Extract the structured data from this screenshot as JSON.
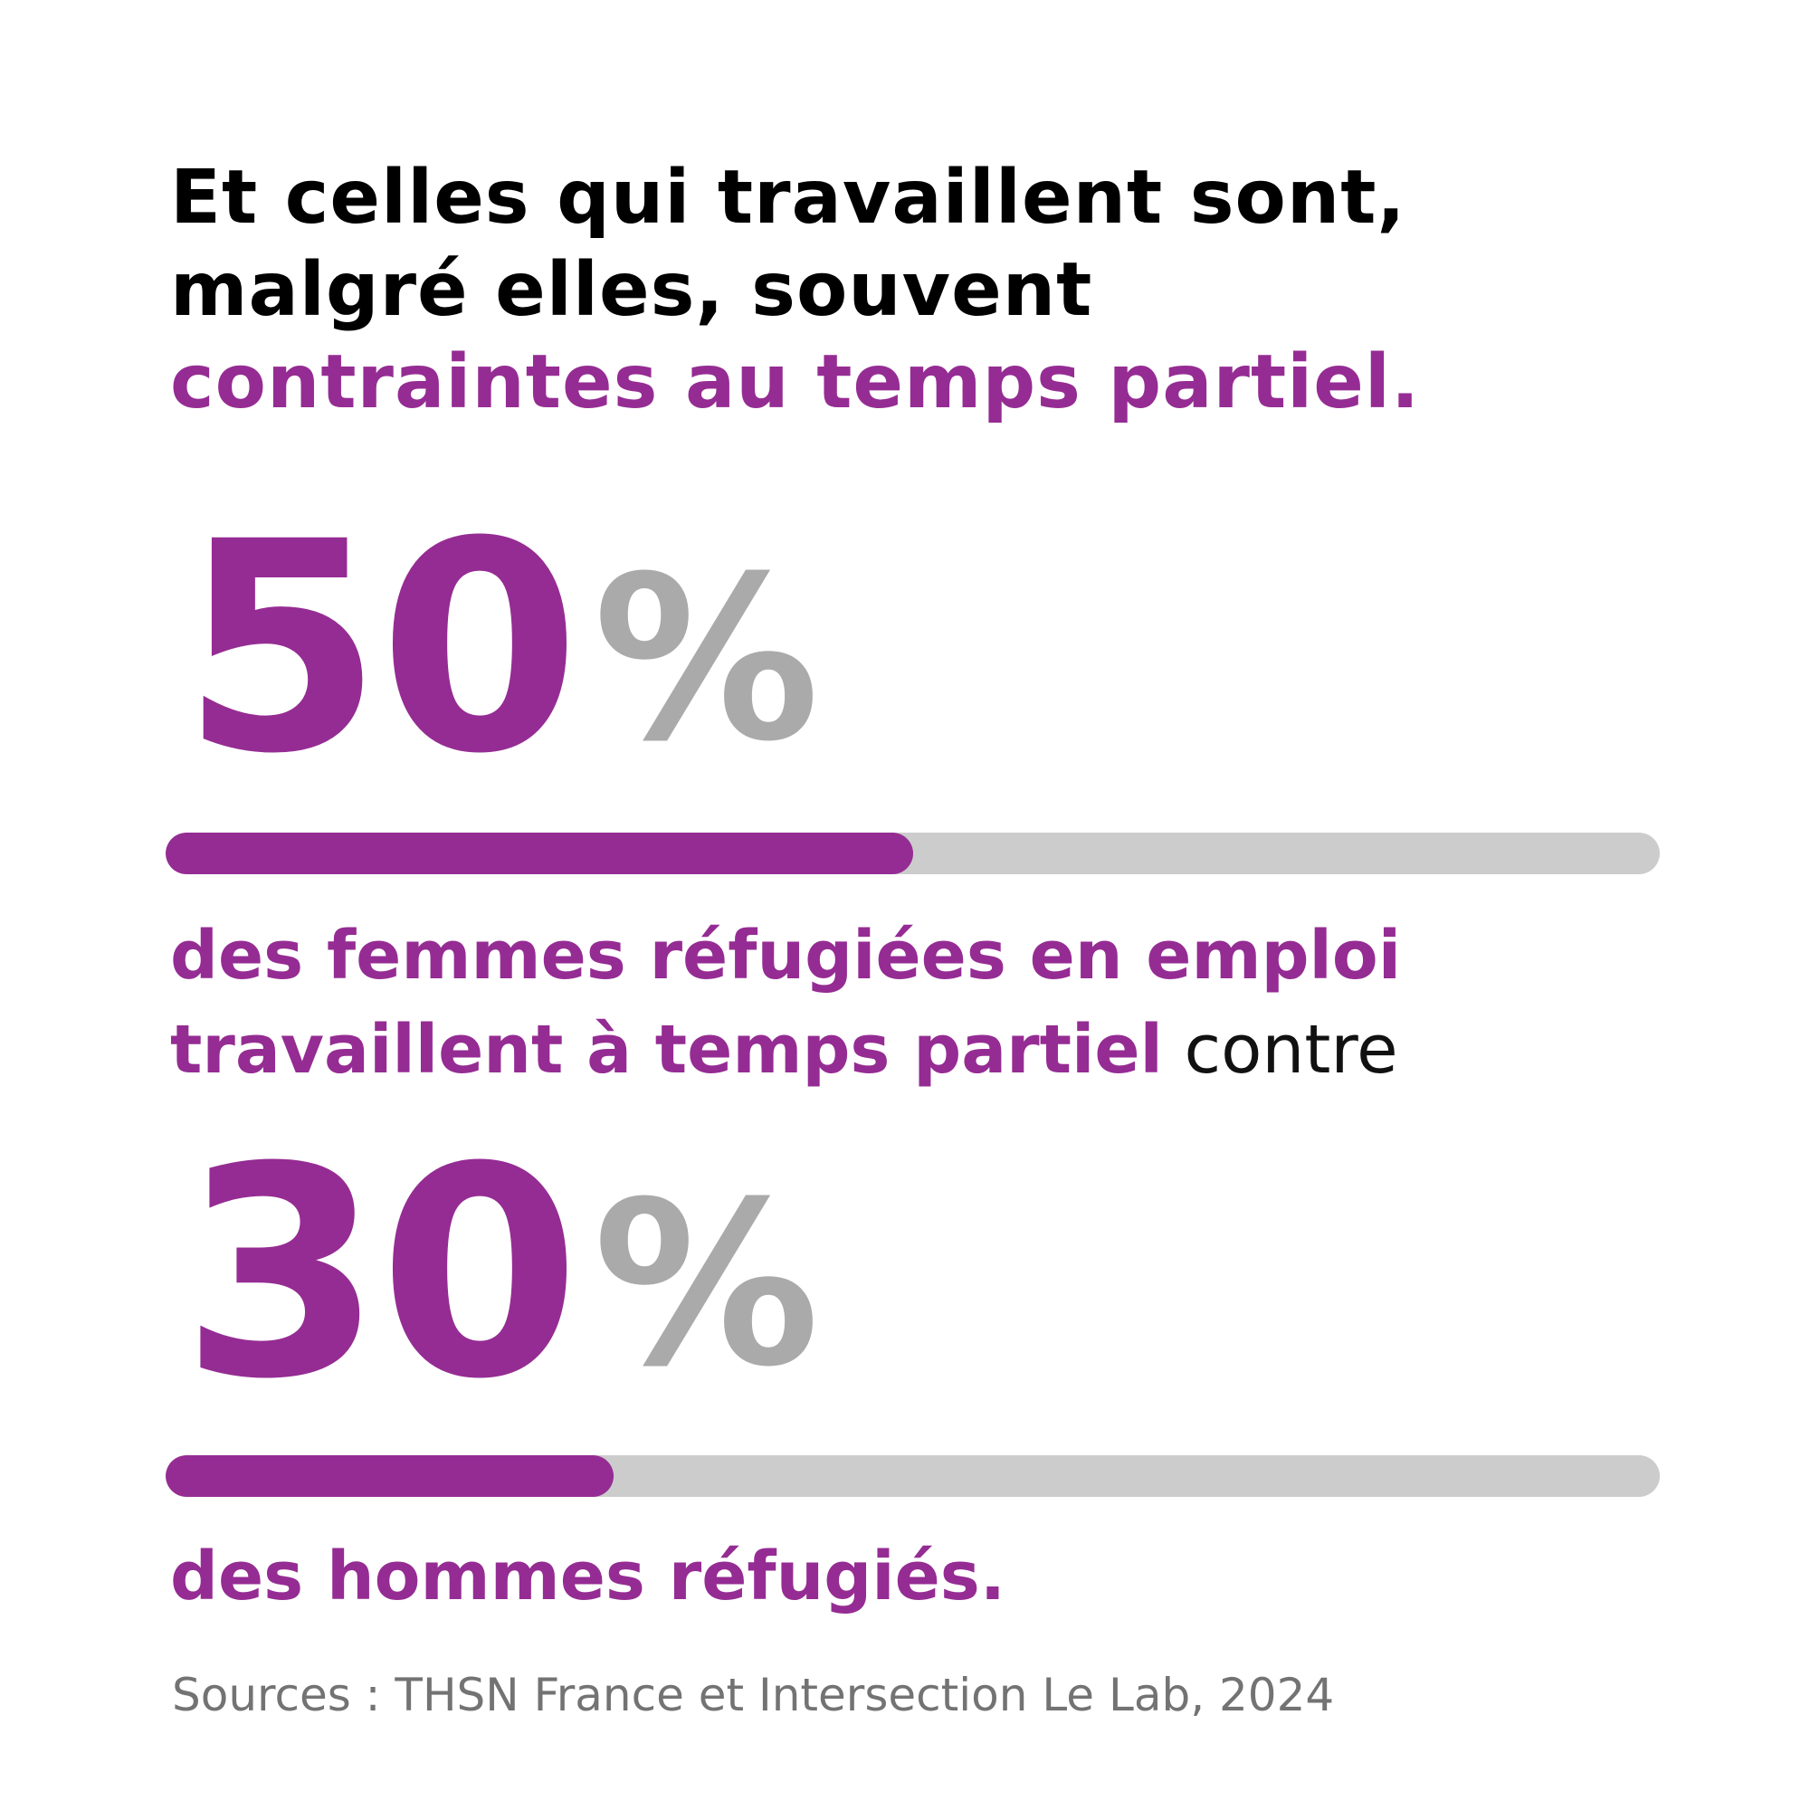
{
  "headline": {
    "line1": "Et celles qui travaillent sont,",
    "line2": "malgré elles, souvent",
    "line3": "contraintes au temps partiel."
  },
  "stat_women": {
    "value": "50",
    "unit": "%",
    "fraction": 0.5,
    "caption_line1": "des femmes réfugiées en emploi",
    "caption_line2": "travaillent à temps partiel",
    "caption_suffix": "contre"
  },
  "stat_men": {
    "value": "30",
    "unit": "%",
    "fraction": 0.3,
    "caption": "des hommes réfugiés."
  },
  "source": "Sources : THSN France et Intersection Le Lab, 2024",
  "colors": {
    "accent": "#952c93",
    "percent_sign": "#aaaaaa",
    "bar_track": "#cccccc",
    "source_text": "#737373",
    "headline_text": "#000000"
  }
}
